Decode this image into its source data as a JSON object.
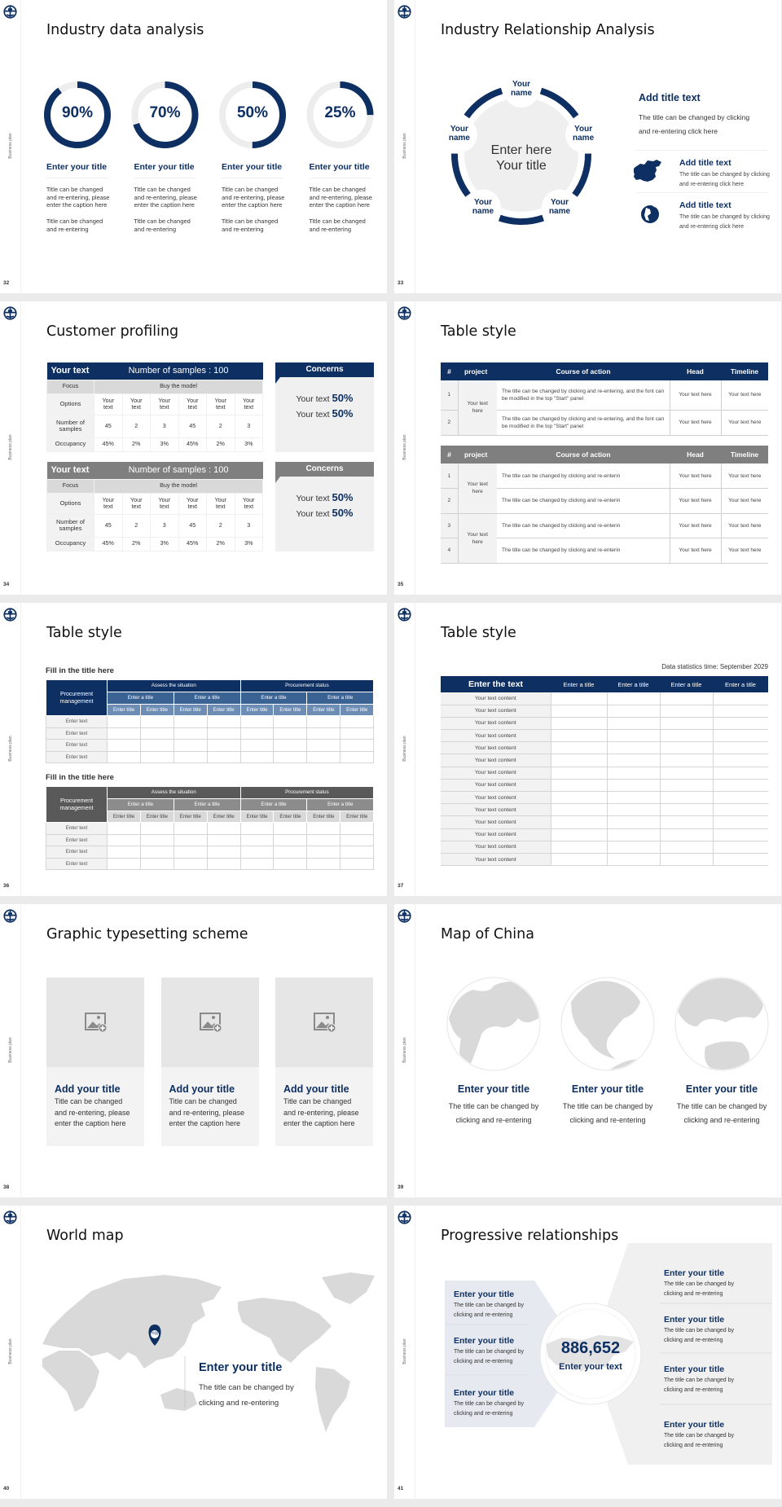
{
  "colors": {
    "navy": "#0d2f62",
    "gray_header": "#7f7f7f",
    "light_gray": "#f2f2f2",
    "ring_track": "#ededed"
  },
  "sidebar_label": "Business plan",
  "s32": {
    "page": "32",
    "title": "Industry data analysis",
    "rings": [
      {
        "value": 90,
        "label": "90%",
        "title": "Enter your title",
        "desc1": "Title can be changed and re-entering, please enter the caption here",
        "desc2": "Title can be changed and re-entering"
      },
      {
        "value": 70,
        "label": "70%",
        "title": "Enter your title",
        "desc1": "Title can be changed and re-entering, please enter the caption here",
        "desc2": "Title can be changed and re-entering"
      },
      {
        "value": 50,
        "label": "50%",
        "title": "Enter your title",
        "desc1": "Title can be changed and re-entering, please enter the caption here",
        "desc2": "Title can be changed and re-entering"
      },
      {
        "value": 25,
        "label": "25%",
        "title": "Enter your title",
        "desc1": "Title can be changed and re-entering, please enter the caption here",
        "desc2": "Title can be changed and re-entering"
      }
    ]
  },
  "s33": {
    "page": "33",
    "title": "Industry Relationship Analysis",
    "center_line1": "Enter here",
    "center_line2": "Your title",
    "names": [
      "Your name",
      "Your name",
      "Your name",
      "Your name",
      "Your name"
    ],
    "main_title": "Add title text",
    "main_desc": "The title can be changed by clicking and re-entering click here",
    "items": [
      {
        "icon": "china-map-icon",
        "title": "Add title text",
        "desc": "The title can be changed by clicking and re-entering click here"
      },
      {
        "icon": "globe-icon",
        "title": "Add title text",
        "desc": "The title can be changed by clicking and re-entering click here"
      }
    ]
  },
  "s34": {
    "page": "34",
    "title": "Customer profiling",
    "tables": [
      {
        "theme": "#0d2f62",
        "header_left": "Your text",
        "header_right": "Number of samples : 100",
        "focus_label": "Focus",
        "focus_value": "Buy the model",
        "rows": [
          {
            "label": "Options",
            "cells": [
              "Your text",
              "Your text",
              "Your text",
              "Your text",
              "Your text",
              "Your text"
            ]
          },
          {
            "label": "Number of samples",
            "cells": [
              "45",
              "2",
              "3",
              "45",
              "2",
              "3"
            ]
          },
          {
            "label": "Occupancy",
            "cells": [
              "45%",
              "2%",
              "3%",
              "45%",
              "2%",
              "3%"
            ]
          }
        ],
        "concerns": {
          "title": "Concerns",
          "lines": [
            {
              "text": "Your text",
              "value": "50%"
            },
            {
              "text": "Your text",
              "value": "50%"
            }
          ]
        }
      },
      {
        "theme": "#7f7f7f",
        "header_left": "Your text",
        "header_right": "Number of samples : 100",
        "focus_label": "Focus",
        "focus_value": "Buy the model",
        "rows": [
          {
            "label": "Options",
            "cells": [
              "Your text",
              "Your text",
              "Your text",
              "Your text",
              "Your text",
              "Your text"
            ]
          },
          {
            "label": "Number of samples",
            "cells": [
              "45",
              "2",
              "3",
              "45",
              "2",
              "3"
            ]
          },
          {
            "label": "Occupancy",
            "cells": [
              "45%",
              "2%",
              "3%",
              "45%",
              "2%",
              "3%"
            ]
          }
        ],
        "concerns": {
          "title": "Concerns",
          "lines": [
            {
              "text": "Your text",
              "value": "50%"
            },
            {
              "text": "Your text",
              "value": "50%"
            }
          ]
        }
      }
    ]
  },
  "s35": {
    "page": "35",
    "title": "Table style",
    "tables": [
      {
        "theme": "#0d2f62",
        "headers": [
          "#",
          "project",
          "Course of action",
          "Head",
          "Timeline"
        ],
        "projects": [
          "Your text here"
        ],
        "rows": [
          {
            "num": "1",
            "action": "The title can be changed by clicking and re-entering, and the font can be modified in the top \"Start\" panel",
            "head": "Your text here",
            "timeline": "Your text here"
          },
          {
            "num": "2",
            "action": "The title can be changed by clicking and re-entering, and the font can be modified in the top \"Start\" panel",
            "head": "Your text here",
            "timeline": "Your text here"
          }
        ]
      },
      {
        "theme": "#7f7f7f",
        "headers": [
          "#",
          "project",
          "Course of action",
          "Head",
          "Timeline"
        ],
        "projects": [
          "Your text here",
          "Your text here"
        ],
        "rows": [
          {
            "num": "1",
            "action": "The title can be changed by clicking and re-enterin",
            "head": "Your text here",
            "timeline": "Your text here"
          },
          {
            "num": "2",
            "action": "The title can be changed by clicking and re-enterin",
            "head": "Your text here",
            "timeline": "Your text here"
          },
          {
            "num": "3",
            "action": "The title can be changed by clicking and re-enterin",
            "head": "Your text here",
            "timeline": "Your text here"
          },
          {
            "num": "4",
            "action": "The title can be changed by clicking and re-enterin",
            "head": "Your text here",
            "timeline": "Your text here"
          }
        ]
      }
    ]
  },
  "s36": {
    "page": "36",
    "title": "Table style",
    "tables": [
      {
        "subtitle": "Fill in the title here",
        "colors": [
          "#0d2f62",
          "#3a6394",
          "#6e8db4"
        ],
        "corner": "Procurement management",
        "groups": [
          "Assess the situation",
          "Procurement status"
        ],
        "subgroups": [
          "Enter a title",
          "Enter a title",
          "Enter a title",
          "Enter a title"
        ],
        "cols": [
          "Enter title",
          "Enter title",
          "Enter title",
          "Enter title",
          "Enter title",
          "Enter title",
          "Enter title",
          "Enter title"
        ],
        "rows": [
          "Enter text",
          "Enter text",
          "Enter text",
          "Enter text"
        ]
      },
      {
        "subtitle": "Fill in the title here",
        "colors": [
          "#595959",
          "#8c8c8c",
          "#d9d9d9"
        ],
        "corner": "Procurement management",
        "groups": [
          "Assess the situation",
          "Procurement status"
        ],
        "subgroups": [
          "Enter a title",
          "Enter a title",
          "Enter a title",
          "Enter a title"
        ],
        "cols": [
          "Enter title",
          "Enter title",
          "Enter title",
          "Enter title",
          "Enter title",
          "Enter title",
          "Enter title",
          "Enter title"
        ],
        "rows": [
          "Enter text",
          "Enter text",
          "Enter text",
          "Enter text"
        ]
      }
    ]
  },
  "s37": {
    "page": "37",
    "title": "Table style",
    "stat_time": "Data statistics time: September 2029",
    "header_first": "Enter the text",
    "cols": [
      "Enter a title",
      "Enter a title",
      "Enter a title",
      "Enter a title"
    ],
    "rows": [
      "Your text content",
      "Your text content",
      "Your text content",
      "Your text content",
      "Your text content",
      "Your text content",
      "Your text content",
      "Your text content",
      "Your text content",
      "Your text content",
      "Your text content",
      "Your text content",
      "Your text content",
      "Your text content"
    ]
  },
  "s38": {
    "page": "38",
    "title": "Graphic typesetting scheme",
    "cards": [
      {
        "icon": "image-add-icon",
        "title": "Add your title",
        "desc": "Title can be changed and re-entering, please enter the caption here"
      },
      {
        "icon": "image-add-icon",
        "title": "Add your title",
        "desc": "Title can be changed and re-entering, please enter the caption here"
      },
      {
        "icon": "image-add-icon",
        "title": "Add your title",
        "desc": "Title can be changed and re-entering, please enter the caption here"
      }
    ]
  },
  "s39": {
    "page": "39",
    "title": "Map of China",
    "items": [
      {
        "title": "Enter your title",
        "desc": "The title can be changed by clicking and re-entering"
      },
      {
        "title": "Enter your title",
        "desc": "The title can be changed by clicking and re-entering"
      },
      {
        "title": "Enter your title",
        "desc": "The title can be changed by clicking and re-entering"
      }
    ]
  },
  "s40": {
    "page": "40",
    "title": "World map",
    "pin_label": "中国",
    "heading": "Enter your title",
    "desc": "The title can be changed by clicking and re-entering"
  },
  "s41": {
    "page": "41",
    "title": "Progressive relationships",
    "number": "886,652",
    "number_label": "Enter your text",
    "left_items": [
      {
        "title": "Enter your title",
        "desc": "The title can be changed by clicking and re-entering"
      },
      {
        "title": "Enter your title",
        "desc": "The title can be changed by clicking and re-entering"
      },
      {
        "title": "Enter your title",
        "desc": "The title can be changed by clicking and re-entering"
      }
    ],
    "right_items": [
      {
        "title": "Enter your title",
        "desc": "The title can be changed by clicking and re-entering"
      },
      {
        "title": "Enter your title",
        "desc": "The title can be changed by clicking and re-entering"
      },
      {
        "title": "Enter your title",
        "desc": "The title can be changed by clicking and re-entering"
      },
      {
        "title": "Enter your title",
        "desc": "The title can be changed by clicking and re-entering"
      }
    ]
  }
}
